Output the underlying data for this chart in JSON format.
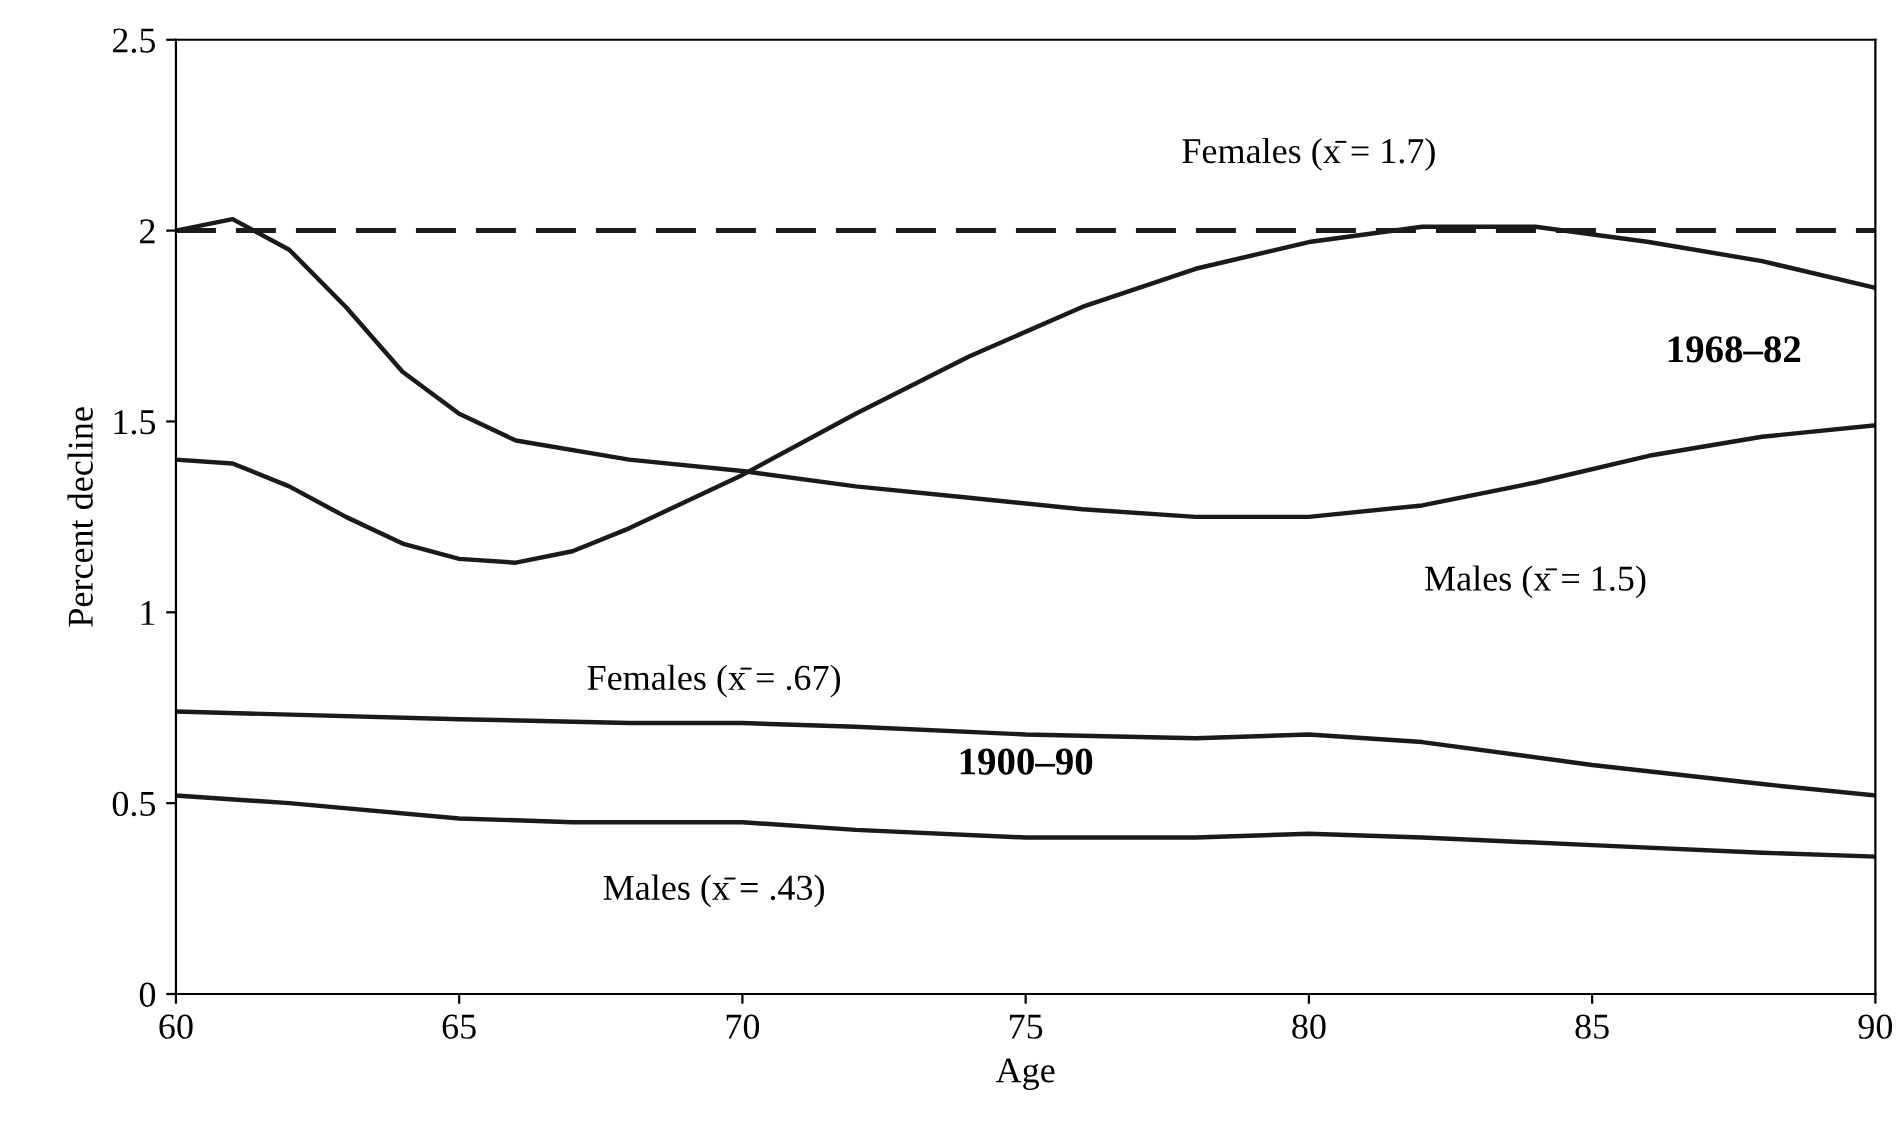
{
  "chart_data": {
    "type": "line",
    "xlabel": "Age",
    "ylabel": "Percent decline",
    "xlim": [
      60,
      90
    ],
    "ylim": [
      0,
      2.5
    ],
    "xticks": [
      60,
      65,
      70,
      75,
      80,
      85,
      90
    ],
    "yticks": [
      0,
      0.5,
      1,
      1.5,
      2,
      2.5
    ],
    "grid": false,
    "legend": false,
    "marker": "none",
    "line_style": "solid",
    "series": [
      {
        "name": "Females (x̄ = 1.7)",
        "color": "#1a1a1a",
        "x": [
          60,
          61,
          62,
          63,
          64,
          65,
          66,
          67,
          68,
          70,
          72,
          74,
          76,
          78,
          80,
          82,
          84,
          86,
          88,
          90
        ],
        "values": [
          1.4,
          1.39,
          1.33,
          1.25,
          1.18,
          1.14,
          1.13,
          1.16,
          1.22,
          1.36,
          1.52,
          1.67,
          1.8,
          1.9,
          1.97,
          2.01,
          2.01,
          1.97,
          1.92,
          1.85
        ]
      },
      {
        "name": "Males (x̄ = 1.5)",
        "color": "#1a1a1a",
        "x": [
          60,
          61,
          62,
          63,
          64,
          65,
          66,
          68,
          70,
          72,
          74,
          76,
          78,
          80,
          82,
          84,
          86,
          88,
          90
        ],
        "values": [
          2.0,
          2.03,
          1.95,
          1.8,
          1.63,
          1.52,
          1.45,
          1.4,
          1.37,
          1.33,
          1.3,
          1.27,
          1.25,
          1.25,
          1.28,
          1.34,
          1.41,
          1.46,
          1.49
        ]
      },
      {
        "name": "Females (x̄ = .67)",
        "color": "#1a1a1a",
        "x": [
          60,
          65,
          68,
          70,
          72,
          75,
          78,
          80,
          82,
          85,
          88,
          90
        ],
        "values": [
          0.74,
          0.72,
          0.71,
          0.71,
          0.7,
          0.68,
          0.67,
          0.68,
          0.66,
          0.6,
          0.55,
          0.52
        ]
      },
      {
        "name": "Males (x̄ = .43)",
        "color": "#1a1a1a",
        "x": [
          60,
          62,
          65,
          67,
          70,
          72,
          75,
          78,
          80,
          82,
          85,
          88,
          90
        ],
        "values": [
          0.52,
          0.5,
          0.46,
          0.45,
          0.45,
          0.43,
          0.41,
          0.41,
          0.42,
          0.41,
          0.39,
          0.37,
          0.36
        ]
      }
    ],
    "ref_lines": [
      {
        "axis": "y",
        "value": 2,
        "color": "#1a1a1a",
        "line_style": "dashed"
      }
    ],
    "annotations": [
      "1968–82",
      "1900–90"
    ]
  }
}
